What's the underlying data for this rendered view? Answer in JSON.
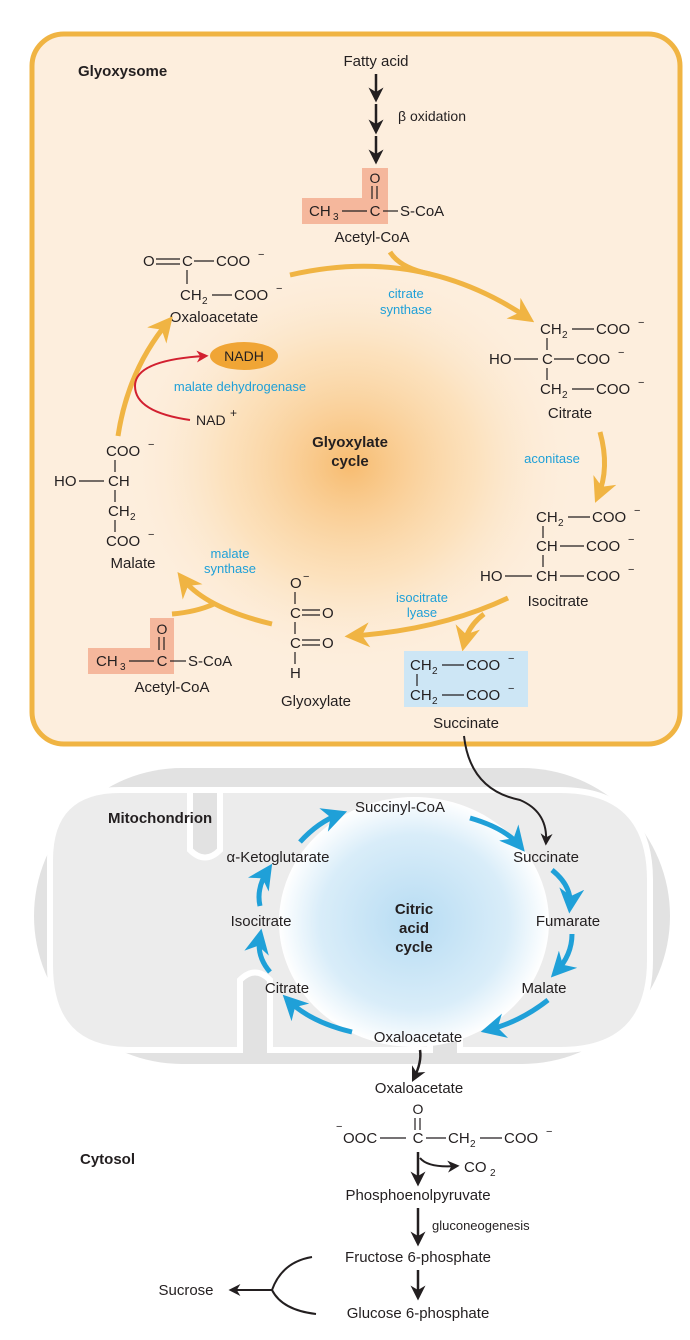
{
  "compartments": {
    "glyoxysome": "Glyoxysome",
    "mitochondrion": "Mitochondrion",
    "cytosol": "Cytosol"
  },
  "cycles": {
    "glyoxylate": [
      "Glyoxylate",
      "cycle"
    ],
    "citric": [
      "Citric",
      "acid",
      "cycle"
    ]
  },
  "glyoxysome": {
    "fatty_acid": "Fatty acid",
    "beta_oxidation": "β oxidation",
    "acetyl_coa_top": "Acetyl-CoA",
    "oxaloacetate": "Oxaloacetate",
    "citrate": "Citrate",
    "isocitrate": "Isocitrate",
    "malate": "Malate",
    "glyoxylate": "Glyoxylate",
    "acetyl_coa_left": "Acetyl-CoA",
    "succinate": "Succinate",
    "nadh": "NADH",
    "nad": "NAD",
    "nad_charge": "+"
  },
  "enzymes": {
    "citrate_synthase": [
      "citrate",
      "synthase"
    ],
    "aconitase": "aconitase",
    "isocitrate_lyase": [
      "isocitrate",
      "lyase"
    ],
    "malate_synthase": [
      "malate",
      "synthase"
    ],
    "malate_dehydrogenase": "malate dehydrogenase"
  },
  "structures": {
    "s_coa": "S-CoA",
    "o": "O",
    "coo": "COO",
    "minus": "−",
    "ch2": "CH",
    "ch3": "CH",
    "c": "C",
    "ch": "CH",
    "h": "H",
    "ho": "HO",
    "two": "2",
    "three": "3",
    "ooc": "OOC"
  },
  "mitochondrion": {
    "succinyl_coa": "Succinyl-CoA",
    "succinate": "Succinate",
    "fumarate": "Fumarate",
    "malate": "Malate",
    "oxaloacetate": "Oxaloacetate",
    "citrate": "Citrate",
    "isocitrate": "Isocitrate",
    "alpha_ketoglutarate": "α-Ketoglutarate"
  },
  "cytosol": {
    "oxaloacetate": "Oxaloacetate",
    "co2": "CO",
    "co2_sub": "2",
    "pep": "Phosphoenolpyruvate",
    "gluconeogenesis": "gluconeogenesis",
    "f6p": "Fructose 6-phosphate",
    "g6p": "Glucose 6-phosphate",
    "sucrose": "Sucrose"
  },
  "colors": {
    "glyoxysome_fill": "#fdeedd",
    "glyoxysome_border": "#f0b443",
    "orange_arrow": "#f0b443",
    "blue_arrow": "#1fa0d8",
    "mito_fill": "#e2e2e2",
    "highlight_salmon": "#f5b79c",
    "highlight_blue": "#cde6f5",
    "nadh_fill": "#f0a535",
    "red_arrow": "#d22030"
  }
}
